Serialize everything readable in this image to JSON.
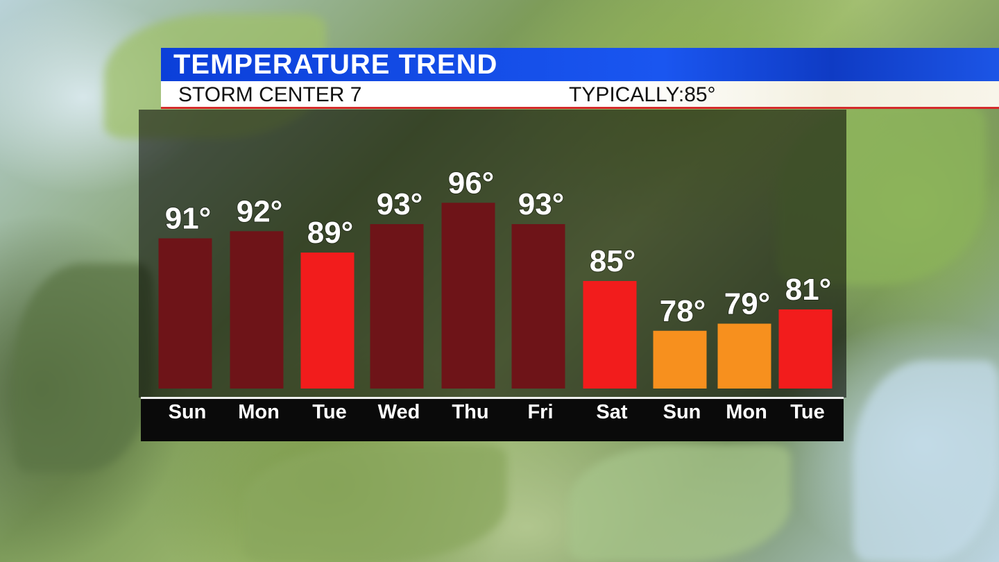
{
  "header": {
    "title": "TEMPERATURE TREND",
    "station": "STORM CENTER 7",
    "typical_label": "TYPICALLY:",
    "typical_value": "85°"
  },
  "colors": {
    "above_normal": "#6e1418",
    "near_normal": "#f21c1c",
    "below_normal": "#f7901e",
    "title_bar": "#1a56f0"
  },
  "chart_data": {
    "type": "bar",
    "categories": [
      "Sun",
      "Mon",
      "Tue",
      "Wed",
      "Thu",
      "Fri",
      "Sat",
      "Sun",
      "Mon",
      "Tue"
    ],
    "values": [
      91,
      92,
      89,
      93,
      96,
      93,
      85,
      78,
      79,
      81
    ],
    "value_labels": [
      "91°",
      "92°",
      "89°",
      "93°",
      "96°",
      "93°",
      "85°",
      "78°",
      "79°",
      "81°"
    ],
    "bar_colors": [
      "#6e1418",
      "#6e1418",
      "#f21c1c",
      "#6e1418",
      "#6e1418",
      "#6e1418",
      "#f21c1c",
      "#f7901e",
      "#f7901e",
      "#f21c1c"
    ],
    "title": "TEMPERATURE TREND",
    "xlabel": "",
    "ylabel": "",
    "grid": false
  }
}
